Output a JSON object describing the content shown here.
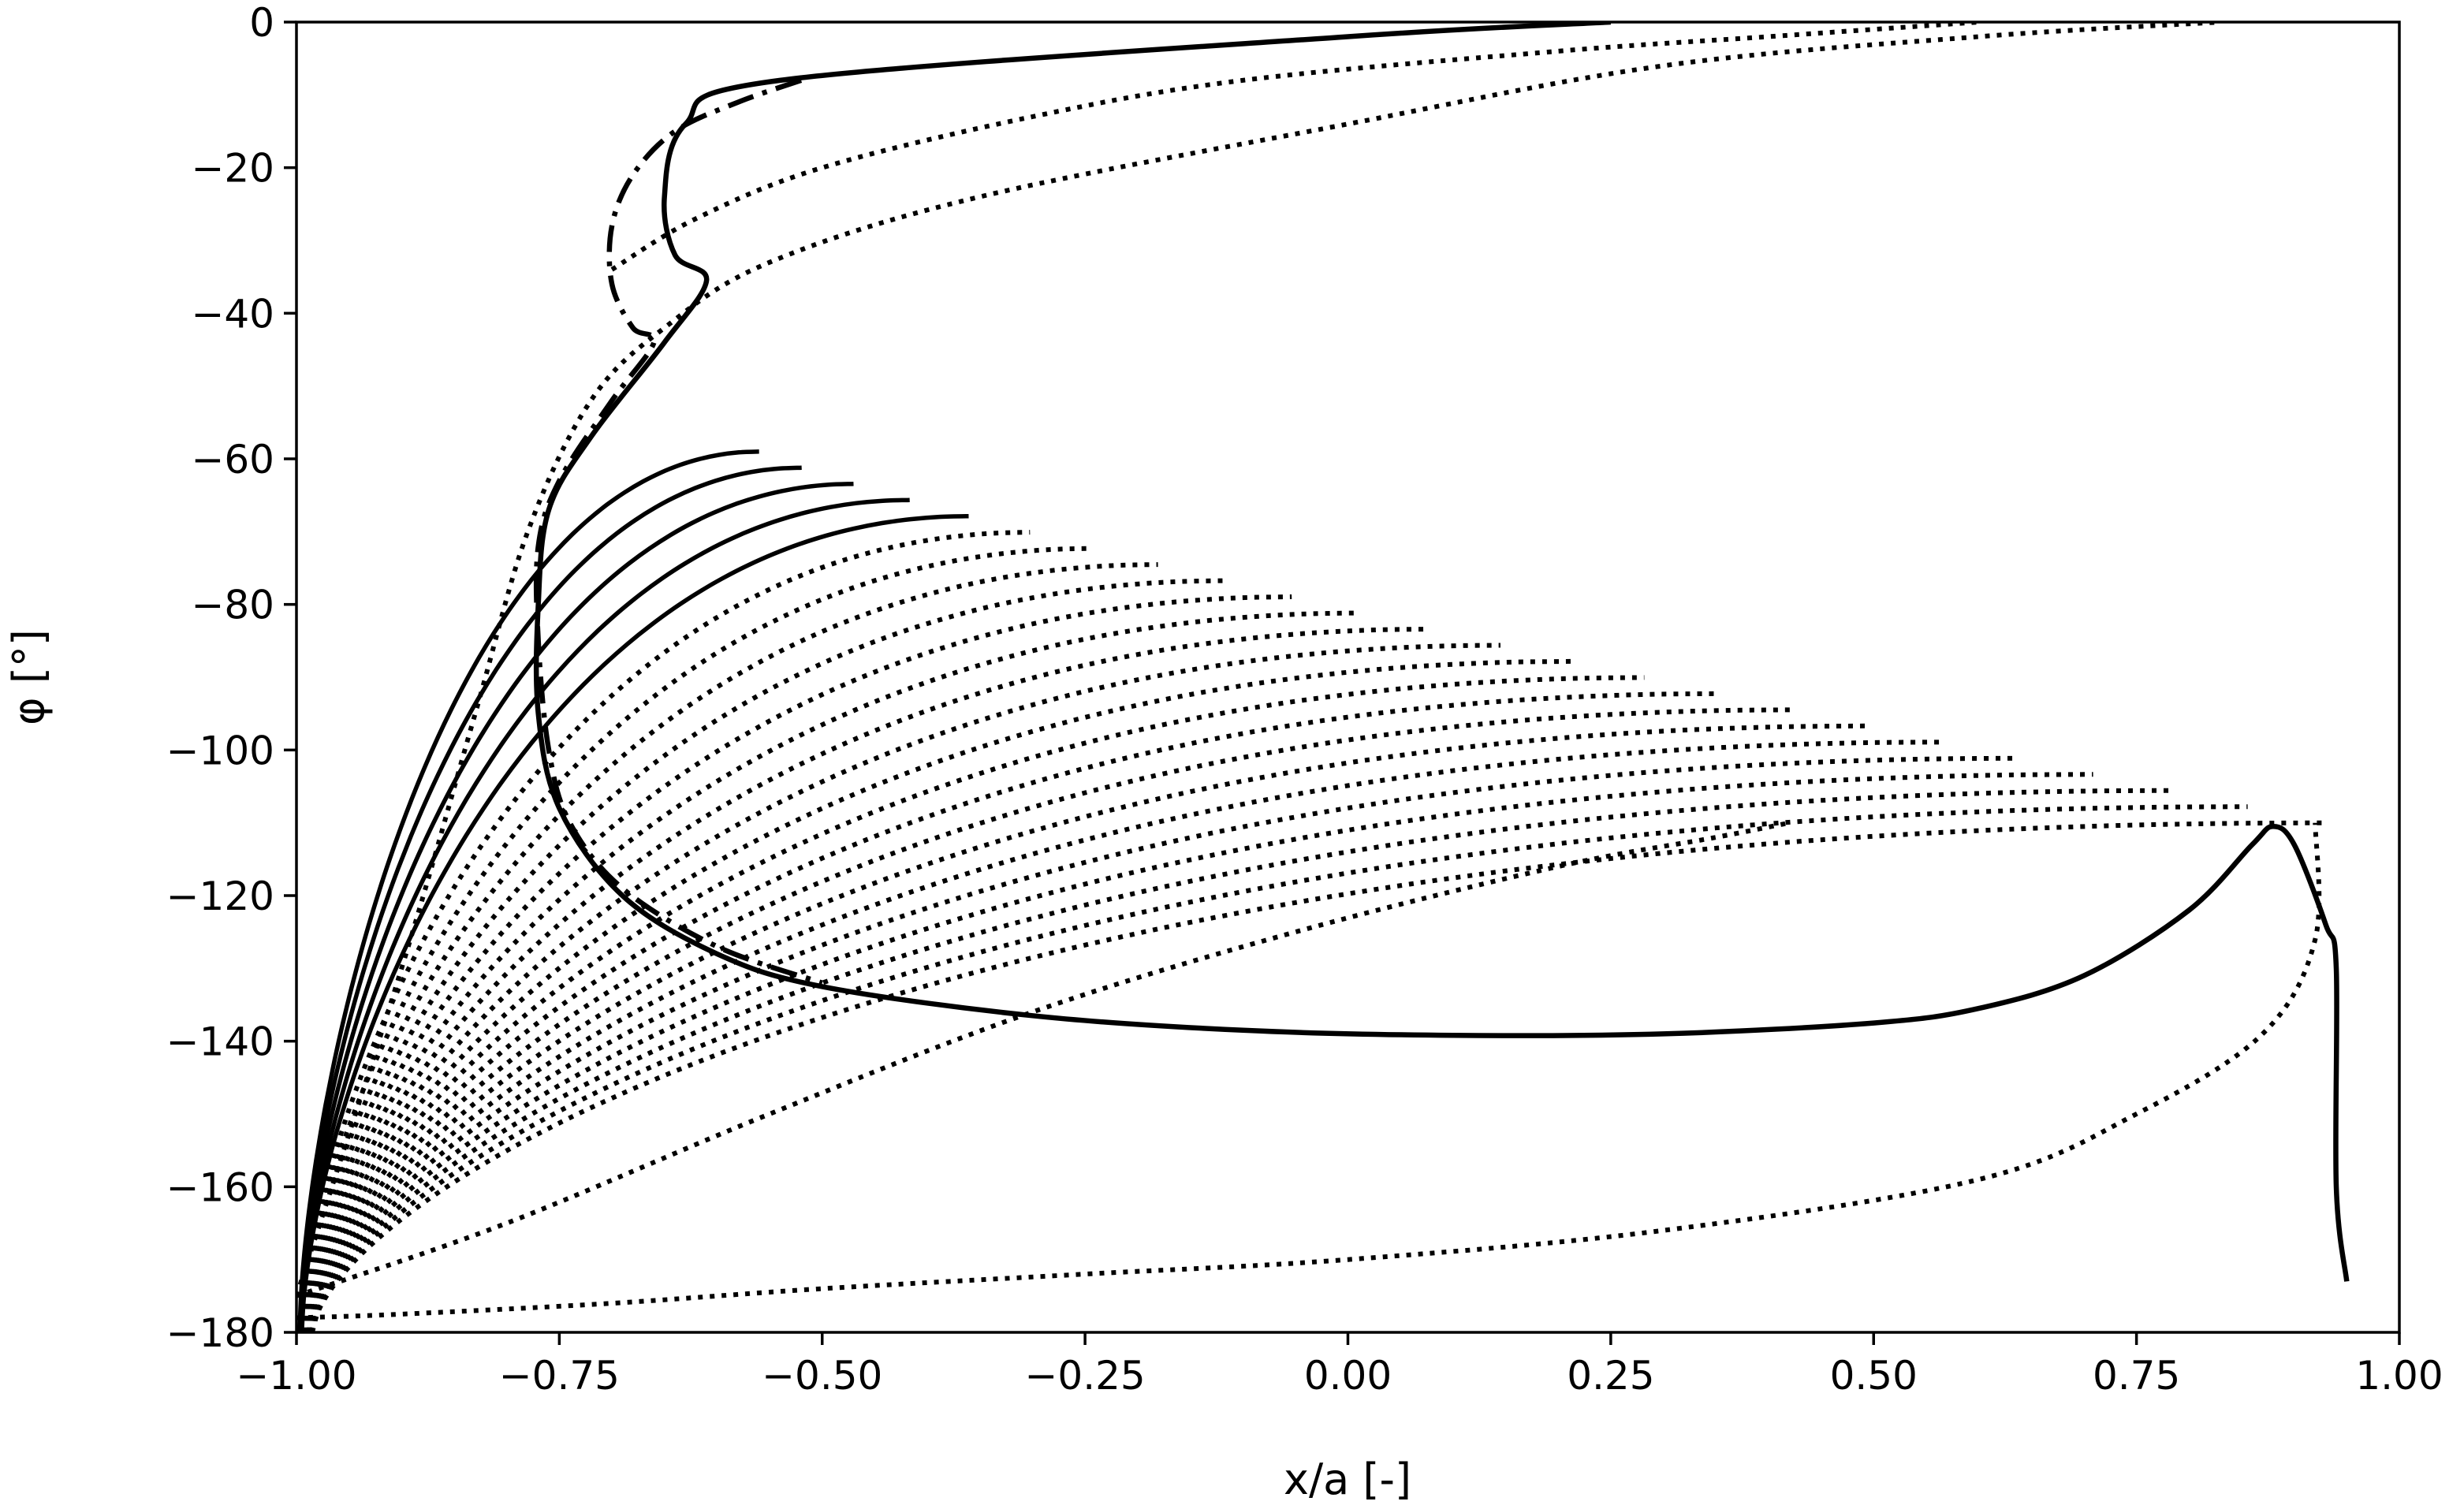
{
  "chart_data": {
    "type": "line",
    "xlabel": "x/a [-]",
    "ylabel": "φ [°]",
    "xlim": [
      -1.0,
      1.0
    ],
    "ylim": [
      -180,
      0
    ],
    "x_ticks": [
      -1.0,
      -0.75,
      -0.5,
      -0.25,
      0.0,
      0.25,
      0.5,
      0.75,
      1.0
    ],
    "x_tick_labels": [
      "−1.00",
      "−0.75",
      "−0.50",
      "−0.25",
      "0.00",
      "0.25",
      "0.50",
      "0.75",
      "1.00"
    ],
    "y_ticks": [
      0,
      -20,
      -40,
      -60,
      -80,
      -100,
      -120,
      -140,
      -160,
      -180
    ],
    "y_tick_labels": [
      "0",
      "−20",
      "−40",
      "−60",
      "−80",
      "−100",
      "−120",
      "−140",
      "−160",
      "−180"
    ],
    "grid": false,
    "legend": "none",
    "series": [
      {
        "style": "solid",
        "points": [
          [
            0.25,
            0
          ],
          [
            0.0,
            -2
          ],
          [
            -0.54,
            -8
          ],
          [
            -0.63,
            -14
          ],
          [
            -0.65,
            -24
          ],
          [
            -0.64,
            -32
          ],
          [
            -0.61,
            -35.5
          ],
          [
            -0.65,
            -44
          ],
          [
            -0.72,
            -57
          ],
          [
            -0.76,
            -67
          ],
          [
            -0.77,
            -80
          ],
          [
            -0.77,
            -95
          ],
          [
            -0.75,
            -108
          ],
          [
            -0.69,
            -120
          ],
          [
            -0.6,
            -128
          ],
          [
            -0.5,
            -132.5
          ],
          [
            -0.3,
            -136.5
          ],
          [
            -0.1,
            -138.5
          ],
          [
            0.1,
            -139.2
          ],
          [
            0.3,
            -139
          ],
          [
            0.5,
            -137.5
          ],
          [
            0.6,
            -135.5
          ],
          [
            0.7,
            -131
          ],
          [
            0.8,
            -122
          ],
          [
            0.86,
            -113
          ],
          [
            0.88,
            -110.5
          ],
          [
            0.9,
            -113
          ],
          [
            0.93,
            -124
          ],
          [
            0.94,
            -130
          ],
          [
            0.94,
            -160
          ],
          [
            0.95,
            -173
          ]
        ]
      },
      {
        "style": "dashdot",
        "points": [
          [
            -0.52,
            -8
          ],
          [
            -0.58,
            -11
          ],
          [
            -0.64,
            -15
          ],
          [
            -0.68,
            -21
          ],
          [
            -0.7,
            -28
          ],
          [
            -0.7,
            -36
          ],
          [
            -0.68,
            -42
          ],
          [
            -0.66,
            -44
          ],
          [
            -0.7,
            -52
          ],
          [
            -0.75,
            -63
          ],
          [
            -0.77,
            -72
          ],
          [
            -0.77,
            -85
          ],
          [
            -0.76,
            -100
          ],
          [
            -0.74,
            -110
          ],
          [
            -0.69,
            -119
          ],
          [
            -0.6,
            -127
          ],
          [
            -0.5,
            -132
          ]
        ]
      },
      {
        "style": "dotted",
        "points": [
          [
            -1.0,
            -178
          ],
          [
            -0.9,
            -177.5
          ],
          [
            -0.7,
            -176
          ],
          [
            -0.5,
            -174
          ],
          [
            -0.25,
            -172
          ],
          [
            0.0,
            -170
          ],
          [
            0.3,
            -166
          ],
          [
            0.6,
            -159
          ],
          [
            0.75,
            -150
          ],
          [
            0.87,
            -139
          ],
          [
            0.92,
            -126
          ],
          [
            0.92,
            -110
          ]
        ]
      },
      {
        "style": "dotted",
        "points": [
          [
            -1.0,
            -175
          ],
          [
            -0.8,
            -165
          ],
          [
            -0.55,
            -150
          ],
          [
            -0.3,
            -136
          ],
          [
            -0.05,
            -125
          ],
          [
            0.2,
            -116
          ],
          [
            0.35,
            -112
          ],
          [
            0.42,
            -110
          ]
        ]
      },
      {
        "style": "dotted",
        "points": [
          [
            -1.0,
            -175
          ],
          [
            -0.9,
            -130
          ],
          [
            -0.83,
            -95
          ],
          [
            -0.78,
            -70
          ],
          [
            -0.72,
            -52
          ],
          [
            -0.65,
            -42
          ],
          [
            -0.55,
            -33
          ],
          [
            -0.35,
            -24
          ],
          [
            0.0,
            -14
          ],
          [
            0.3,
            -6
          ],
          [
            0.6,
            -2
          ],
          [
            0.83,
            0
          ]
        ]
      },
      {
        "style": "dotted",
        "points": [
          [
            -0.7,
            -34
          ],
          [
            -0.62,
            -27
          ],
          [
            -0.5,
            -20
          ],
          [
            -0.3,
            -13
          ],
          [
            -0.1,
            -8
          ],
          [
            0.2,
            -4
          ],
          [
            0.4,
            -2
          ],
          [
            0.6,
            0
          ]
        ]
      }
    ],
    "fan_curves": {
      "count": 24,
      "start_x": [
        -0.997,
        -0.985
      ],
      "end_x": [
        -0.56,
        0.93
      ],
      "end_y": [
        -59,
        -110
      ],
      "solid_fraction": 0.5
    }
  }
}
